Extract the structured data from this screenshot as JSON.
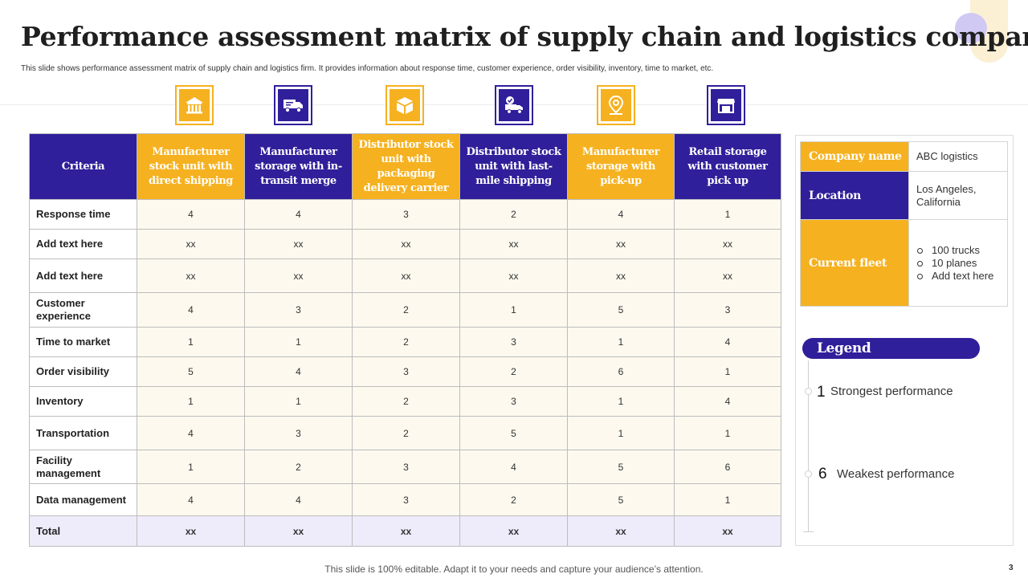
{
  "slide": {
    "title": "Performance assessment matrix of supply chain and logistics company",
    "subtitle": "This slide shows performance assessment matrix of supply chain and logistics firm. It provides information about response time, customer experience, order visibility, inventory, time to market, etc.",
    "footer": "This slide is 100% editable. Adapt it to your needs and capture your audience’s attention.",
    "page_number": "3"
  },
  "icons": [
    "warehouse-icon",
    "delivery-truck-icon",
    "package-box-icon",
    "shipping-truck-icon",
    "location-pin-icon",
    "storefront-icon"
  ],
  "matrix": {
    "criteria_header": "Criteria",
    "columns": [
      "Manufacturer stock unit with direct shipping",
      "Manufacturer storage with in-transit merge",
      "Distributor stock unit with packaging delivery carrier",
      "Distributor stock unit with last-mile shipping",
      "Manufacturer storage with pick-up",
      "Retail storage with customer pick up"
    ],
    "rows": [
      {
        "label": "Response time",
        "values": [
          "4",
          "4",
          "3",
          "2",
          "4",
          "1"
        ]
      },
      {
        "label": "Add text here",
        "values": [
          "xx",
          "xx",
          "xx",
          "xx",
          "xx",
          "xx"
        ]
      },
      {
        "label": "Add text here",
        "values": [
          "xx",
          "xx",
          "xx",
          "xx",
          "xx",
          "xx"
        ]
      },
      {
        "label": "Customer experience",
        "values": [
          "4",
          "3",
          "2",
          "1",
          "5",
          "3"
        ]
      },
      {
        "label": "Time to market",
        "values": [
          "1",
          "1",
          "2",
          "3",
          "1",
          "4"
        ]
      },
      {
        "label": "Order visibility",
        "values": [
          "5",
          "4",
          "3",
          "2",
          "6",
          "1"
        ]
      },
      {
        "label": "Inventory",
        "values": [
          "1",
          "1",
          "2",
          "3",
          "1",
          "4"
        ]
      },
      {
        "label": "Transportation",
        "values": [
          "4",
          "3",
          "2",
          "5",
          "1",
          "1"
        ]
      },
      {
        "label": "Facility management",
        "values": [
          "1",
          "2",
          "3",
          "4",
          "5",
          "6"
        ]
      },
      {
        "label": "Data management",
        "values": [
          "4",
          "4",
          "3",
          "2",
          "5",
          "1"
        ]
      }
    ],
    "total": {
      "label": "Total",
      "values": [
        "xx",
        "xx",
        "xx",
        "xx",
        "xx",
        "xx"
      ]
    }
  },
  "company": {
    "name_label": "Company name",
    "name_value": "ABC logistics",
    "location_label": "Location",
    "location_value": "Los Angeles, California",
    "fleet_label": "Current fleet",
    "fleet_items": [
      "100 trucks",
      "10 planes",
      "Add text here"
    ]
  },
  "legend": {
    "title": "Legend",
    "items": [
      {
        "number": "1",
        "label": "Strongest performance"
      },
      {
        "number": "6",
        "label": "Weakest performance"
      }
    ]
  },
  "colors": {
    "purple": "#2f1f9a",
    "yellow": "#f5b11f",
    "cell_bg": "#fdf9ef",
    "total_bg": "#eeebfa"
  }
}
